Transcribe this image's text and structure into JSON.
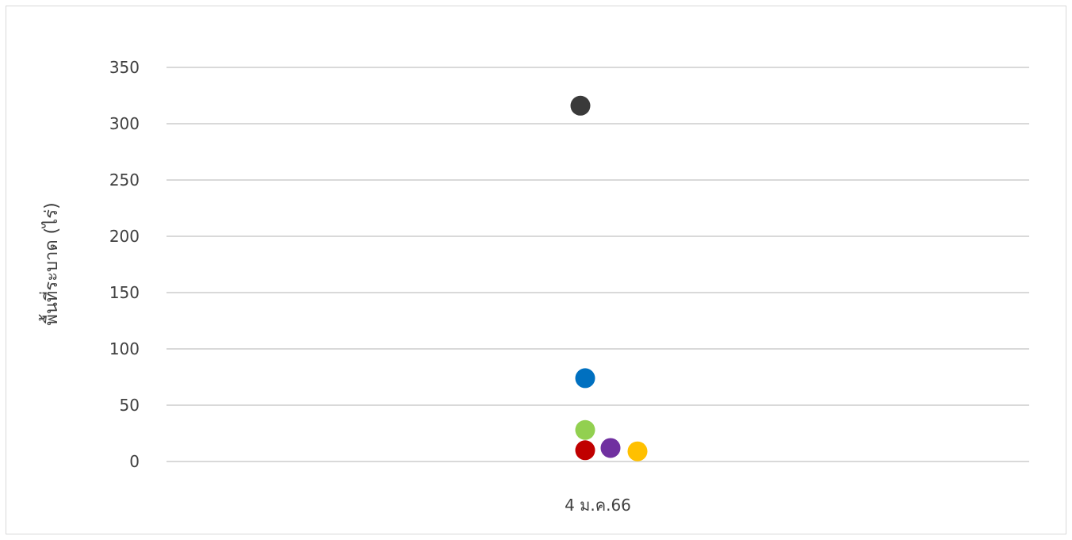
{
  "chart_data": {
    "type": "scatter",
    "title": "",
    "xlabel": "",
    "ylabel": "พื้นที่ระบาด (ไร่)",
    "categories": [
      "4 ม.ค.66"
    ],
    "ylim": [
      0,
      350
    ],
    "yticks": [
      0,
      50,
      100,
      150,
      200,
      250,
      300,
      350
    ],
    "grid": true,
    "legend": "none",
    "points": [
      {
        "category": "4 ม.ค.66",
        "y": 316,
        "color": "#3a3a3a"
      },
      {
        "category": "4 ม.ค.66",
        "y": 74,
        "color": "#0070c0"
      },
      {
        "category": "4 ม.ค.66",
        "y": 28,
        "color": "#92d050"
      },
      {
        "category": "4 ม.ค.66",
        "y": 10,
        "color": "#c00000"
      },
      {
        "category": "4 ม.ค.66",
        "y": 12,
        "color": "#7030a0"
      },
      {
        "category": "4 ม.ค.66",
        "y": 9,
        "color": "#ffc000"
      }
    ]
  },
  "colors": {
    "gridline": "#d9d9d9",
    "text": "#404040",
    "border": "#d9d9d9"
  }
}
